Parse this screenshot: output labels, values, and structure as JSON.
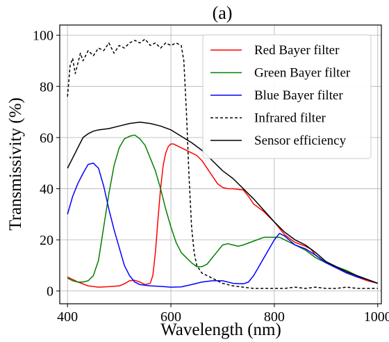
{
  "chart_data": {
    "type": "line",
    "title": "(a)",
    "xlabel": "Wavelength (nm)",
    "ylabel": "Transmissivity (%)",
    "xlim": [
      385,
      1007
    ],
    "ylim": [
      -5,
      104
    ],
    "xticks": [
      400,
      600,
      800,
      1000
    ],
    "xtick_labels": [
      "400",
      "600",
      "800",
      "1000"
    ],
    "yticks": [
      0,
      20,
      40,
      60,
      80,
      100
    ],
    "ytick_labels": [
      "0",
      "20",
      "40",
      "60",
      "80",
      "100"
    ],
    "grid": true,
    "legend_position": "top-right",
    "series": [
      {
        "name": "Red Bayer filter",
        "color": "#ff0000",
        "dash": "solid",
        "points": [
          [
            400,
            5.5
          ],
          [
            420,
            3.5
          ],
          [
            440,
            2
          ],
          [
            460,
            1.5
          ],
          [
            480,
            1.7
          ],
          [
            500,
            2
          ],
          [
            510,
            2.8
          ],
          [
            520,
            4
          ],
          [
            530,
            4.2
          ],
          [
            540,
            3.5
          ],
          [
            550,
            2.5
          ],
          [
            560,
            3
          ],
          [
            565,
            6
          ],
          [
            570,
            15
          ],
          [
            575,
            28
          ],
          [
            580,
            40
          ],
          [
            585,
            49
          ],
          [
            590,
            54
          ],
          [
            595,
            56.5
          ],
          [
            600,
            57.5
          ],
          [
            605,
            57.5
          ],
          [
            610,
            57
          ],
          [
            620,
            56
          ],
          [
            630,
            55
          ],
          [
            640,
            54
          ],
          [
            650,
            53
          ],
          [
            660,
            51
          ],
          [
            670,
            48
          ],
          [
            680,
            45
          ],
          [
            690,
            42
          ],
          [
            700,
            40.5
          ],
          [
            710,
            40
          ],
          [
            720,
            40
          ],
          [
            740,
            39.5
          ],
          [
            750,
            37
          ],
          [
            760,
            34
          ],
          [
            780,
            31
          ],
          [
            800,
            27
          ],
          [
            820,
            22
          ],
          [
            840,
            19
          ],
          [
            860,
            17.5
          ],
          [
            870,
            16.5
          ],
          [
            880,
            14
          ],
          [
            900,
            11
          ],
          [
            920,
            9
          ],
          [
            940,
            7
          ],
          [
            960,
            5.5
          ],
          [
            980,
            4
          ],
          [
            1000,
            3
          ]
        ]
      },
      {
        "name": "Green Bayer filter",
        "color": "#008000",
        "dash": "solid",
        "points": [
          [
            400,
            5
          ],
          [
            410,
            4
          ],
          [
            420,
            3.5
          ],
          [
            430,
            3.5
          ],
          [
            440,
            4
          ],
          [
            450,
            6
          ],
          [
            460,
            12
          ],
          [
            470,
            25
          ],
          [
            480,
            38
          ],
          [
            490,
            49
          ],
          [
            500,
            56
          ],
          [
            510,
            59.5
          ],
          [
            520,
            60.5
          ],
          [
            530,
            61
          ],
          [
            540,
            59.5
          ],
          [
            550,
            57
          ],
          [
            560,
            52
          ],
          [
            570,
            47
          ],
          [
            580,
            40
          ],
          [
            590,
            32
          ],
          [
            600,
            25
          ],
          [
            610,
            19
          ],
          [
            620,
            15
          ],
          [
            630,
            13
          ],
          [
            640,
            11
          ],
          [
            650,
            9.5
          ],
          [
            660,
            9.5
          ],
          [
            670,
            10.5
          ],
          [
            680,
            13
          ],
          [
            690,
            15.5
          ],
          [
            700,
            18
          ],
          [
            710,
            18.5
          ],
          [
            720,
            18
          ],
          [
            730,
            17.5
          ],
          [
            740,
            18
          ],
          [
            760,
            19.5
          ],
          [
            780,
            21
          ],
          [
            800,
            21
          ],
          [
            810,
            21
          ],
          [
            820,
            20
          ],
          [
            840,
            18
          ],
          [
            860,
            16
          ],
          [
            880,
            13
          ],
          [
            900,
            11
          ],
          [
            920,
            9.5
          ],
          [
            940,
            8
          ],
          [
            960,
            6
          ],
          [
            980,
            4.5
          ],
          [
            1000,
            3
          ]
        ]
      },
      {
        "name": "Blue Bayer filter",
        "color": "#0000ff",
        "dash": "solid",
        "points": [
          [
            400,
            30
          ],
          [
            410,
            37
          ],
          [
            420,
            42
          ],
          [
            430,
            46
          ],
          [
            440,
            49.5
          ],
          [
            450,
            50
          ],
          [
            460,
            48
          ],
          [
            470,
            41
          ],
          [
            480,
            32
          ],
          [
            490,
            24
          ],
          [
            500,
            17
          ],
          [
            510,
            10
          ],
          [
            520,
            6
          ],
          [
            530,
            3.5
          ],
          [
            540,
            2.5
          ],
          [
            560,
            2
          ],
          [
            580,
            1.8
          ],
          [
            600,
            1.5
          ],
          [
            620,
            1.6
          ],
          [
            640,
            2.5
          ],
          [
            660,
            3.5
          ],
          [
            680,
            4
          ],
          [
            700,
            4
          ],
          [
            720,
            3
          ],
          [
            740,
            2.8
          ],
          [
            750,
            3.5
          ],
          [
            760,
            6
          ],
          [
            780,
            13
          ],
          [
            800,
            20
          ],
          [
            810,
            22.5
          ],
          [
            820,
            21.5
          ],
          [
            840,
            18
          ],
          [
            860,
            16.5
          ],
          [
            880,
            14
          ],
          [
            900,
            11
          ],
          [
            920,
            9
          ],
          [
            940,
            7
          ],
          [
            960,
            5.5
          ],
          [
            980,
            4.5
          ],
          [
            1000,
            3
          ]
        ]
      },
      {
        "name": "Infrared filter",
        "color": "#000000",
        "dash": "dashed",
        "points": [
          [
            400,
            76
          ],
          [
            405,
            88
          ],
          [
            410,
            91
          ],
          [
            415,
            85
          ],
          [
            420,
            89
          ],
          [
            425,
            93
          ],
          [
            430,
            90
          ],
          [
            440,
            94
          ],
          [
            450,
            92
          ],
          [
            460,
            95
          ],
          [
            470,
            94
          ],
          [
            480,
            97
          ],
          [
            490,
            93
          ],
          [
            500,
            96
          ],
          [
            510,
            95
          ],
          [
            520,
            97
          ],
          [
            530,
            98
          ],
          [
            540,
            97
          ],
          [
            550,
            98.5
          ],
          [
            560,
            96
          ],
          [
            570,
            97
          ],
          [
            580,
            95
          ],
          [
            590,
            97
          ],
          [
            600,
            96
          ],
          [
            610,
            97
          ],
          [
            620,
            96
          ],
          [
            625,
            90
          ],
          [
            630,
            70
          ],
          [
            635,
            45
          ],
          [
            640,
            25
          ],
          [
            645,
            15
          ],
          [
            650,
            10
          ],
          [
            660,
            7
          ],
          [
            680,
            5
          ],
          [
            700,
            3
          ],
          [
            720,
            2
          ],
          [
            740,
            1.5
          ],
          [
            760,
            1
          ],
          [
            780,
            1
          ],
          [
            800,
            1
          ],
          [
            820,
            1
          ],
          [
            840,
            1.5
          ],
          [
            860,
            1
          ],
          [
            880,
            1.5
          ],
          [
            900,
            1
          ],
          [
            920,
            1
          ],
          [
            940,
            1.5
          ],
          [
            960,
            1
          ],
          [
            980,
            1
          ],
          [
            1000,
            1
          ]
        ]
      },
      {
        "name": "Sensor efficiency",
        "color": "#000000",
        "dash": "solid",
        "points": [
          [
            400,
            48
          ],
          [
            410,
            52
          ],
          [
            420,
            56
          ],
          [
            430,
            60
          ],
          [
            440,
            61.5
          ],
          [
            450,
            62.5
          ],
          [
            460,
            63
          ],
          [
            480,
            63.5
          ],
          [
            500,
            64.5
          ],
          [
            520,
            65.5
          ],
          [
            540,
            66
          ],
          [
            560,
            65.5
          ],
          [
            580,
            64.5
          ],
          [
            600,
            63
          ],
          [
            620,
            60.5
          ],
          [
            640,
            58
          ],
          [
            660,
            55
          ],
          [
            680,
            51
          ],
          [
            700,
            47
          ],
          [
            720,
            44
          ],
          [
            740,
            40
          ],
          [
            760,
            36
          ],
          [
            780,
            31.5
          ],
          [
            800,
            27
          ],
          [
            820,
            23
          ],
          [
            840,
            20
          ],
          [
            860,
            18
          ],
          [
            880,
            15
          ],
          [
            900,
            11.5
          ],
          [
            920,
            9.5
          ],
          [
            940,
            7.5
          ],
          [
            960,
            6
          ],
          [
            980,
            4.5
          ],
          [
            1000,
            3
          ]
        ]
      }
    ]
  }
}
